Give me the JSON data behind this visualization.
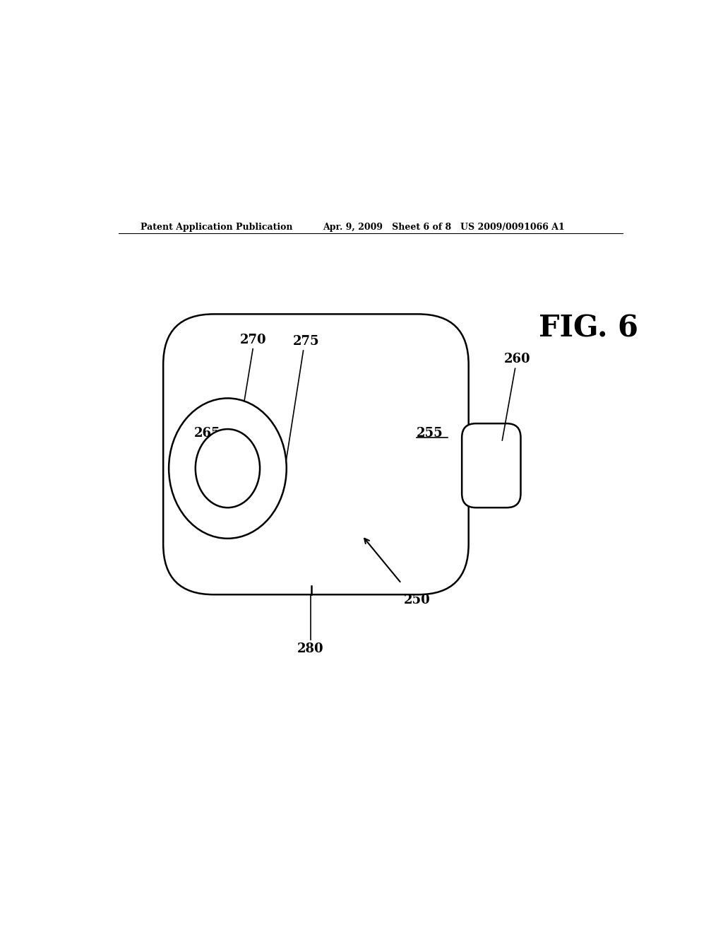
{
  "header_left": "Patent Application Publication",
  "header_mid": "Apr. 9, 2009   Sheet 6 of 8",
  "header_right": "US 2009/0091066 A1",
  "fig_label": "FIG. 6",
  "bg_color": "#ffffff",
  "line_color": "#000000"
}
